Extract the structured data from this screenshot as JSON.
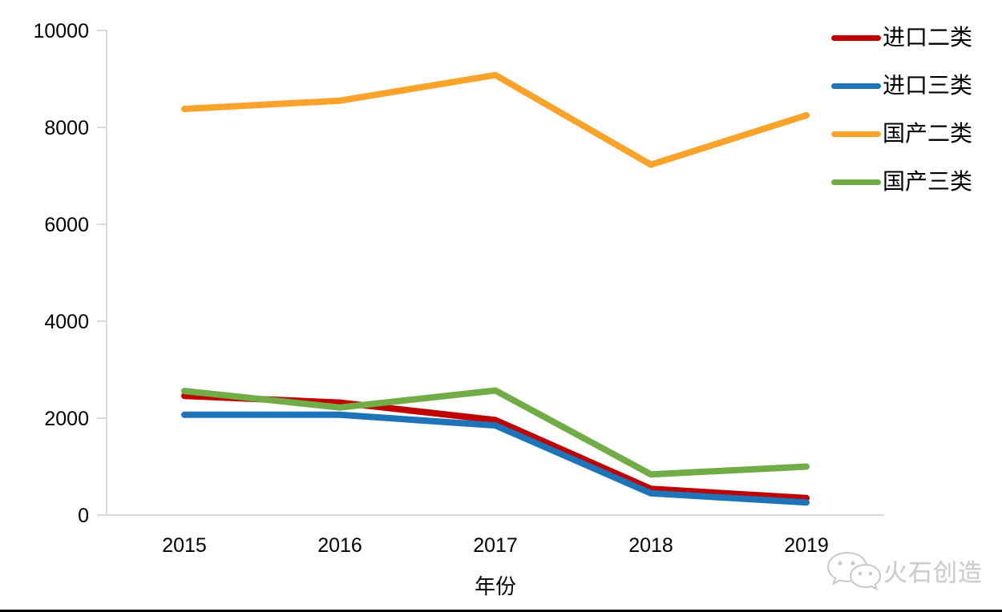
{
  "chart_data": {
    "type": "line",
    "title": "",
    "xlabel": "年份",
    "ylabel": "",
    "categories": [
      "2015",
      "2016",
      "2017",
      "2018",
      "2019"
    ],
    "series": [
      {
        "name": "进口二类",
        "color": "#C00000",
        "values": [
          2460,
          2320,
          1960,
          540,
          350
        ]
      },
      {
        "name": "进口三类",
        "color": "#1F74B8",
        "values": [
          2070,
          2070,
          1850,
          450,
          260
        ]
      },
      {
        "name": "国产二类",
        "color": "#FAA32B",
        "values": [
          8380,
          8550,
          9080,
          7230,
          8250
        ]
      },
      {
        "name": "国产三类",
        "color": "#70AD47",
        "values": [
          2560,
          2220,
          2570,
          840,
          1000
        ]
      }
    ],
    "ylim": [
      0,
      10000
    ],
    "yticks": [
      "0",
      "2000",
      "4000",
      "6000",
      "8000",
      "10000"
    ],
    "grid": false,
    "legend_position": "right-top",
    "axis_color": "#D9D9D9",
    "line_width": 8
  },
  "watermark": {
    "text": "火石创造",
    "icon": "wechat-icon",
    "color": "#cccccc"
  }
}
